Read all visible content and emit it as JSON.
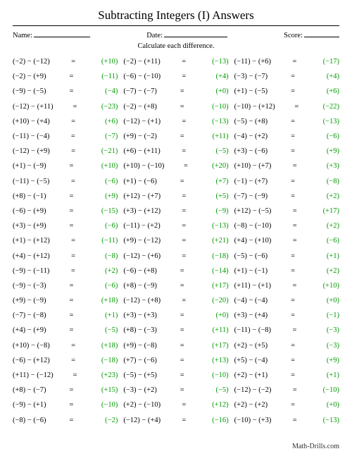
{
  "title": "Subtracting Integers (I) Answers",
  "labels": {
    "name": "Name:",
    "date": "Date:",
    "score": "Score:"
  },
  "instruction": "Calculate each difference.",
  "footer": "Math-Drills.com",
  "columns": [
    [
      {
        "a": -2,
        "b": -12,
        "r": 10
      },
      {
        "a": -2,
        "b": 9,
        "r": -11
      },
      {
        "a": -9,
        "b": -5,
        "r": -4
      },
      {
        "a": -12,
        "b": 11,
        "r": -23
      },
      {
        "a": 10,
        "b": 4,
        "r": 6
      },
      {
        "a": -11,
        "b": -4,
        "r": -7
      },
      {
        "a": -12,
        "b": 9,
        "r": -21
      },
      {
        "a": 1,
        "b": -9,
        "r": 10
      },
      {
        "a": -11,
        "b": -5,
        "r": -6
      },
      {
        "a": 8,
        "b": -1,
        "r": 9
      },
      {
        "a": -6,
        "b": 9,
        "r": -15
      },
      {
        "a": 3,
        "b": 9,
        "r": -6
      },
      {
        "a": 1,
        "b": 12,
        "r": -11
      },
      {
        "a": 4,
        "b": 12,
        "r": -8
      },
      {
        "a": -9,
        "b": -11,
        "r": 2
      },
      {
        "a": -9,
        "b": -3,
        "r": -6
      },
      {
        "a": 9,
        "b": -9,
        "r": 18
      },
      {
        "a": -7,
        "b": -8,
        "r": 1
      },
      {
        "a": 4,
        "b": 9,
        "r": -5
      },
      {
        "a": 10,
        "b": -8,
        "r": 18
      },
      {
        "a": -6,
        "b": 12,
        "r": -18
      },
      {
        "a": 11,
        "b": -12,
        "r": 23
      },
      {
        "a": 8,
        "b": -7,
        "r": 15
      },
      {
        "a": -9,
        "b": 1,
        "r": -10
      },
      {
        "a": -8,
        "b": -6,
        "r": -2
      }
    ],
    [
      {
        "a": -2,
        "b": 11,
        "r": -13
      },
      {
        "a": -6,
        "b": -10,
        "r": 4
      },
      {
        "a": -7,
        "b": -7,
        "r": 0
      },
      {
        "a": -2,
        "b": 8,
        "r": -10
      },
      {
        "a": -12,
        "b": 1,
        "r": -13
      },
      {
        "a": 9,
        "b": -2,
        "r": 11
      },
      {
        "a": 6,
        "b": 11,
        "r": -5
      },
      {
        "a": 10,
        "b": -10,
        "r": 20
      },
      {
        "a": 1,
        "b": -6,
        "r": 7
      },
      {
        "a": 12,
        "b": 7,
        "r": 5
      },
      {
        "a": 3,
        "b": 12,
        "r": -9
      },
      {
        "a": -11,
        "b": 2,
        "r": -13
      },
      {
        "a": 9,
        "b": -12,
        "r": 21
      },
      {
        "a": -12,
        "b": 6,
        "r": -18
      },
      {
        "a": -6,
        "b": 8,
        "r": -14
      },
      {
        "a": 8,
        "b": -9,
        "r": 17
      },
      {
        "a": -12,
        "b": 8,
        "r": -20
      },
      {
        "a": 3,
        "b": 3,
        "r": 0
      },
      {
        "a": 8,
        "b": -3,
        "r": 11
      },
      {
        "a": 9,
        "b": -8,
        "r": 17
      },
      {
        "a": 7,
        "b": -6,
        "r": 13
      },
      {
        "a": -5,
        "b": 5,
        "r": -10
      },
      {
        "a": -3,
        "b": 2,
        "r": -5
      },
      {
        "a": 2,
        "b": -10,
        "r": 12
      },
      {
        "a": -12,
        "b": 4,
        "r": -16
      }
    ],
    [
      {
        "a": -11,
        "b": 6,
        "r": -17
      },
      {
        "a": -3,
        "b": -7,
        "r": 4
      },
      {
        "a": 1,
        "b": -5,
        "r": 6
      },
      {
        "a": -10,
        "b": 12,
        "r": -22
      },
      {
        "a": -5,
        "b": 8,
        "r": -13
      },
      {
        "a": -4,
        "b": 2,
        "r": -6
      },
      {
        "a": 3,
        "b": -6,
        "r": 9
      },
      {
        "a": 10,
        "b": 7,
        "r": 3
      },
      {
        "a": -1,
        "b": 7,
        "r": -8
      },
      {
        "a": -7,
        "b": -9,
        "r": 2
      },
      {
        "a": 12,
        "b": -5,
        "r": 17
      },
      {
        "a": -8,
        "b": -10,
        "r": 2
      },
      {
        "a": 4,
        "b": 10,
        "r": -6
      },
      {
        "a": -5,
        "b": -6,
        "r": 1
      },
      {
        "a": 1,
        "b": -1,
        "r": 2
      },
      {
        "a": 11,
        "b": 1,
        "r": 10
      },
      {
        "a": -4,
        "b": -4,
        "r": 0
      },
      {
        "a": 3,
        "b": 4,
        "r": -1
      },
      {
        "a": -11,
        "b": -8,
        "r": -3
      },
      {
        "a": 2,
        "b": 5,
        "r": -3
      },
      {
        "a": 5,
        "b": -4,
        "r": 9
      },
      {
        "a": 2,
        "b": 1,
        "r": 1
      },
      {
        "a": -12,
        "b": -2,
        "r": -10
      },
      {
        "a": 2,
        "b": 2,
        "r": 0
      },
      {
        "a": -10,
        "b": 3,
        "r": -13
      }
    ]
  ]
}
